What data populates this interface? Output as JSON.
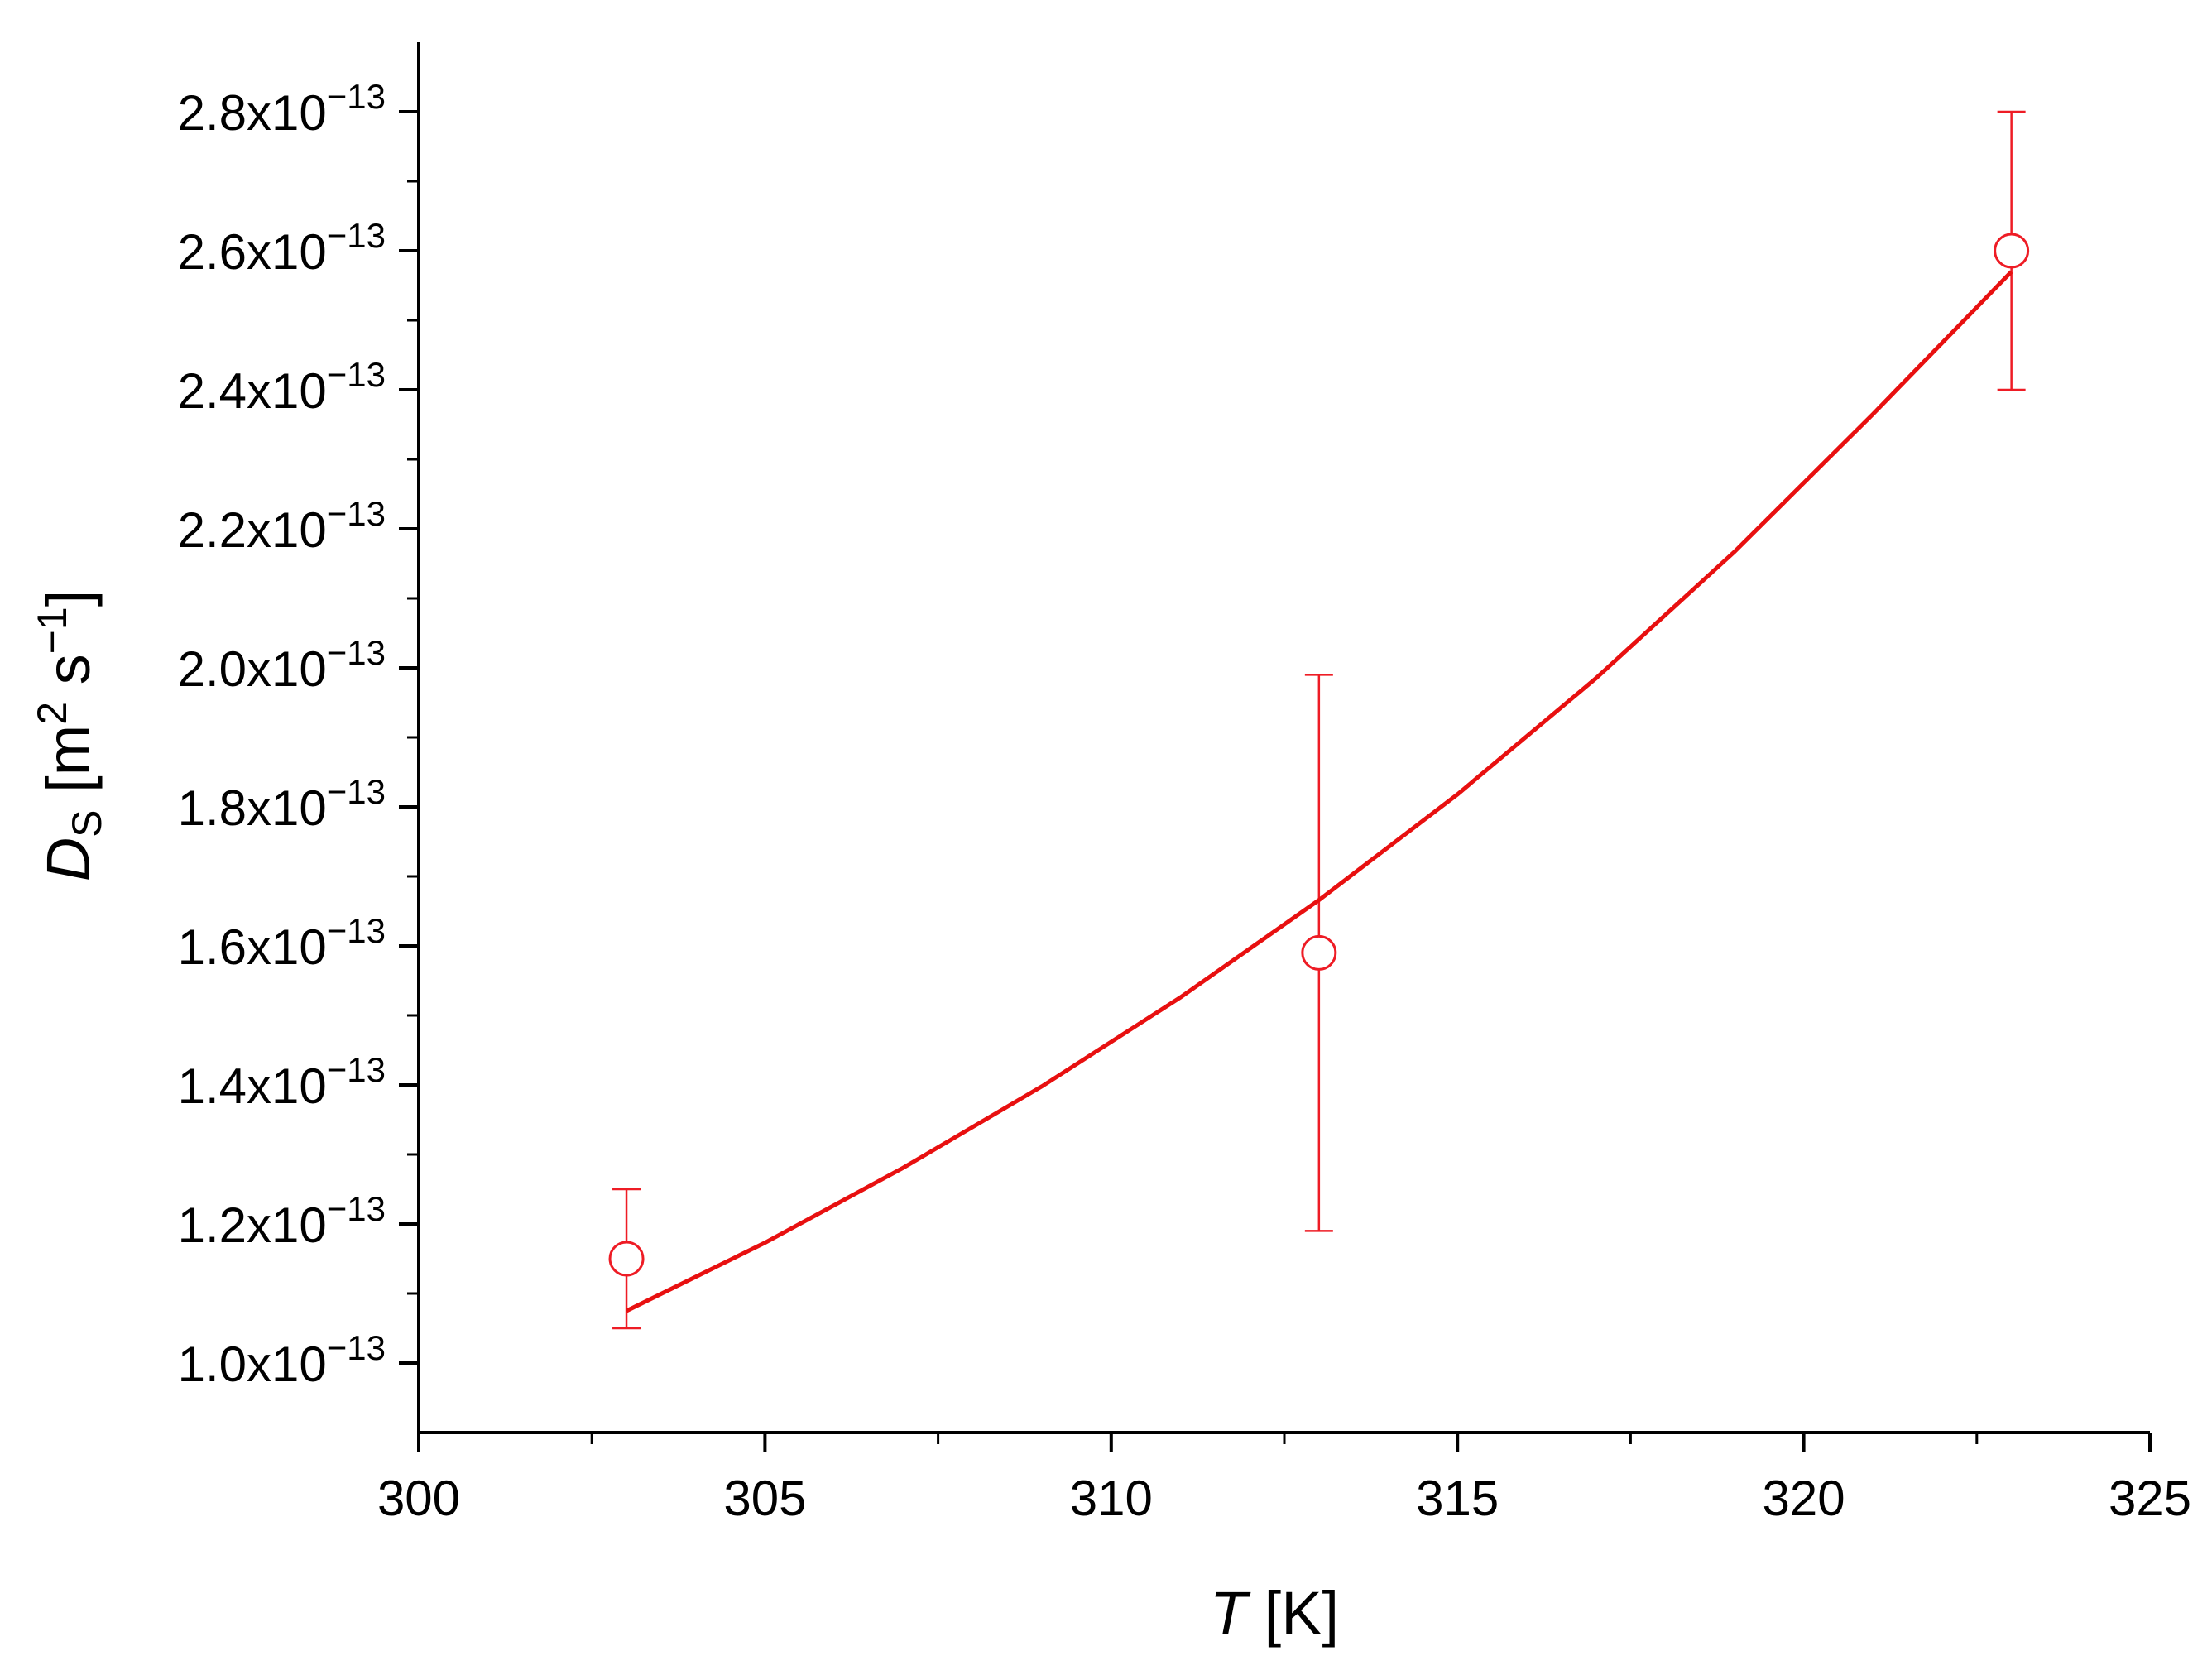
{
  "chart_data": {
    "type": "scatter",
    "xlabel": [
      "T",
      " [K]"
    ],
    "ylabel": [
      "D",
      "S",
      " [m",
      "2",
      " s",
      "−1",
      "]"
    ],
    "xlim": [
      300,
      325
    ],
    "xticks": [
      300,
      305,
      310,
      315,
      320,
      325
    ],
    "xminorticks": [
      302.5,
      307.5,
      312.5,
      317.5,
      322.5
    ],
    "ylim": [
      9e-14,
      2.9e-13
    ],
    "yticks": [
      {
        "value": 1e-13,
        "label": "1.0x10−13"
      },
      {
        "value": 1.2e-13,
        "label": "1.2x10−13"
      },
      {
        "value": 1.4e-13,
        "label": "1.4x10−13"
      },
      {
        "value": 1.6e-13,
        "label": "1.6x10−13"
      },
      {
        "value": 1.8e-13,
        "label": "1.8x10−13"
      },
      {
        "value": 2e-13,
        "label": "2.0x10−13"
      },
      {
        "value": 2.2e-13,
        "label": "2.2x10−13"
      },
      {
        "value": 2.4e-13,
        "label": "2.4x10−13"
      },
      {
        "value": 2.6e-13,
        "label": "2.6x10−13"
      },
      {
        "value": 2.8e-13,
        "label": "2.8x10−13"
      }
    ],
    "yminorticks": [
      1.1e-13,
      1.3e-13,
      1.5e-13,
      1.7e-13,
      1.9e-13,
      2.1e-13,
      2.3e-13,
      2.5e-13,
      2.7e-13
    ],
    "series": [
      {
        "kind": "points",
        "color": "#ee1c25",
        "x": [
          303,
          313,
          323
        ],
        "values": [
          1.15e-13,
          1.59e-13,
          2.6e-13
        ],
        "errors": [
          1e-14,
          4e-14,
          2e-14
        ]
      },
      {
        "kind": "fit",
        "color": "#e81010",
        "x": [
          303,
          305,
          307,
          309,
          311,
          313,
          315,
          317,
          319,
          321,
          323
        ],
        "values": [
          1.075e-13,
          1.173e-13,
          1.281e-13,
          1.398e-13,
          1.526e-13,
          1.666e-13,
          1.818e-13,
          1.985e-13,
          2.167e-13,
          2.365e-13,
          2.57e-13
        ]
      }
    ]
  }
}
